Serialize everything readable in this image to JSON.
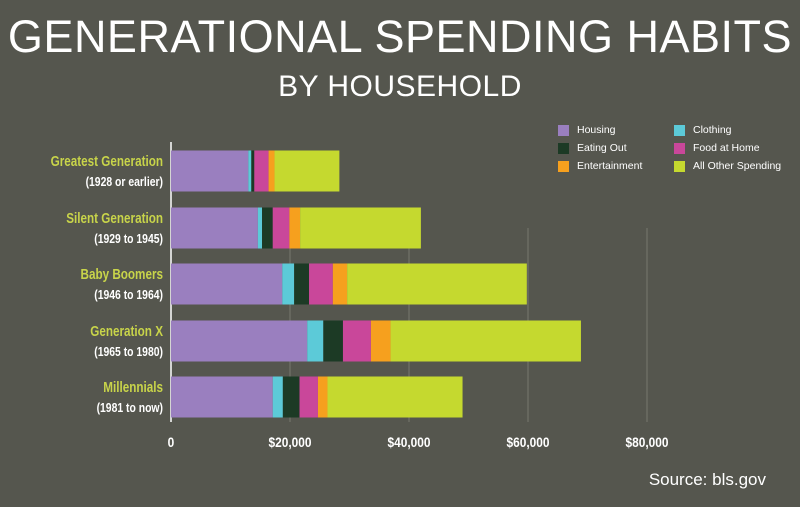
{
  "title": "GENERATIONAL SPENDING HABITS",
  "subtitle": "BY HOUSEHOLD",
  "source": "Source: bls.gov",
  "colors": {
    "background": "#55564e",
    "label_primary": "#c8d44a",
    "label_secondary": "#ffffff",
    "housing": "#9a7fbf",
    "clothing": "#5ccad8",
    "eating_out": "#1c3a25",
    "food_at_home": "#c9479a",
    "entertainment": "#f6a01e",
    "all_other": "#c5d92f"
  },
  "chart_data": {
    "type": "bar",
    "orientation": "horizontal",
    "stacked": true,
    "title": "GENERATIONAL SPENDING HABITS BY HOUSEHOLD",
    "xlabel": "",
    "ylabel": "",
    "xlim": [
      0,
      97000
    ],
    "xticks": [
      0,
      20000,
      40000,
      60000,
      80000
    ],
    "xtick_labels": [
      "0",
      "$20,000",
      "$40,000",
      "$60,000",
      "$80,000"
    ],
    "grid": true,
    "legend_position": "top-right",
    "categories": [
      {
        "name": "Greatest Generation",
        "range": "(1928 or earlier)"
      },
      {
        "name": "Silent Generation",
        "range": "(1929 to 1945)"
      },
      {
        "name": "Baby Boomers",
        "range": "(1946 to 1964)"
      },
      {
        "name": "Generation X",
        "range": "(1965 to 1980)"
      },
      {
        "name": "Millennials",
        "range": "(1981 to now)"
      }
    ],
    "series": [
      {
        "name": "Housing",
        "color_key": "housing",
        "values": [
          13000,
          14600,
          18700,
          22900,
          17100
        ]
      },
      {
        "name": "Eating Out",
        "color_key": "eating_out",
        "values": [
          500,
          1800,
          2500,
          3300,
          2800
        ]
      },
      {
        "name": "Entertainment",
        "color_key": "entertainment",
        "values": [
          1000,
          1800,
          2400,
          3300,
          1600
        ]
      },
      {
        "name": "Clothing",
        "color_key": "clothing",
        "values": [
          500,
          700,
          2000,
          2700,
          1700
        ]
      },
      {
        "name": "Food at Home",
        "color_key": "food_at_home",
        "values": [
          2400,
          2800,
          4000,
          4700,
          3100
        ]
      },
      {
        "name": "All Other Spending",
        "color_key": "all_other",
        "values": [
          10900,
          20300,
          30200,
          32000,
          22700
        ]
      }
    ],
    "stack_order": [
      "Housing",
      "Clothing",
      "Eating Out",
      "Food at Home",
      "Entertainment",
      "All Other Spending"
    ],
    "legend_order": [
      "Housing",
      "Clothing",
      "Eating Out",
      "Food at Home",
      "Entertainment",
      "All Other Spending"
    ]
  }
}
